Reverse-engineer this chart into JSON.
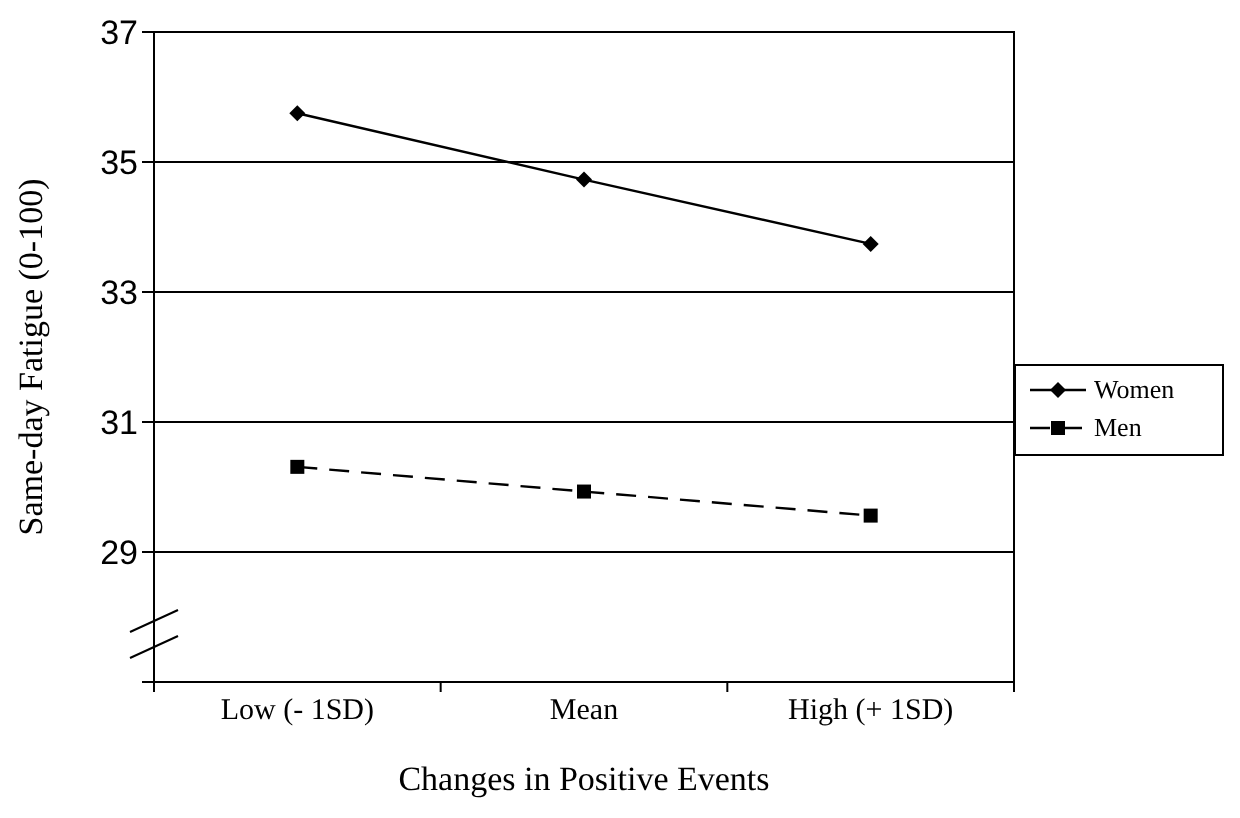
{
  "chart_data": {
    "type": "line",
    "xlabel": "Changes in Positive Events",
    "ylabel": "Same-day Fatigue (0-100)",
    "categories": [
      "Low (- 1SD)",
      "Mean",
      "High (+ 1SD)"
    ],
    "series": [
      {
        "name": "Women",
        "color": "#000000",
        "values": [
          35.75,
          34.73,
          33.74
        ],
        "marker": "diamond",
        "line_style": "solid"
      },
      {
        "name": "Men",
        "color": "#000000",
        "values": [
          30.31,
          29.93,
          29.56
        ],
        "marker": "square",
        "line_style": "dashed"
      }
    ],
    "ylim": [
      27,
      37
    ],
    "yticks": [
      {
        "value": 27,
        "label": null
      },
      29,
      31,
      33,
      35,
      37
    ],
    "grid": "y",
    "legend": "right"
  }
}
